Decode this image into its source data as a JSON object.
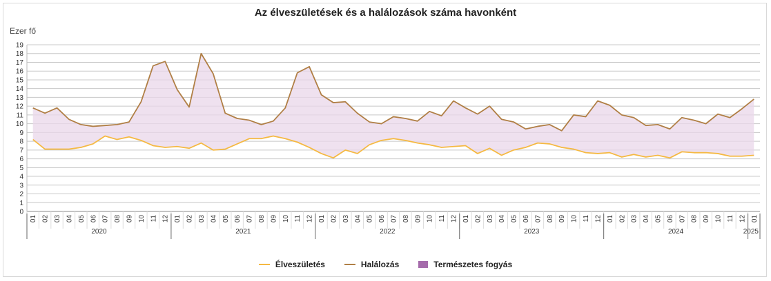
{
  "colors": {
    "births": "#f5b942",
    "deaths": "#b07f45",
    "area": "#ead7ea",
    "area_legend": "#a56bab"
  },
  "chart_data": {
    "type": "line",
    "title": "Az élveszületések és a halálozások száma havonként",
    "ylabel": "Ezer fő",
    "ylim": [
      0,
      19
    ],
    "y_ticks": [
      0,
      1,
      2,
      3,
      4,
      5,
      6,
      7,
      8,
      9,
      10,
      11,
      12,
      13,
      14,
      15,
      16,
      17,
      18,
      19
    ],
    "grid": true,
    "legend_position": "bottom",
    "years": [
      "2020",
      "2021",
      "2022",
      "2023",
      "2024",
      "2025"
    ],
    "x": [
      "01",
      "02",
      "03",
      "04",
      "05",
      "06",
      "07",
      "08",
      "09",
      "10",
      "11",
      "12",
      "01",
      "02",
      "03",
      "04",
      "05",
      "06",
      "07",
      "08",
      "09",
      "10",
      "11",
      "12",
      "01",
      "02",
      "03",
      "04",
      "05",
      "06",
      "07",
      "08",
      "09",
      "10",
      "11",
      "12",
      "01",
      "02",
      "03",
      "04",
      "05",
      "06",
      "07",
      "08",
      "09",
      "10",
      "11",
      "12",
      "01",
      "02",
      "03",
      "04",
      "05",
      "06",
      "07",
      "08",
      "09",
      "10",
      "11",
      "12",
      "01"
    ],
    "series": [
      {
        "name": "Élveszületés",
        "values": [
          8.2,
          7.1,
          7.1,
          7.1,
          7.3,
          7.7,
          8.6,
          8.2,
          8.5,
          8.1,
          7.5,
          7.3,
          7.4,
          7.2,
          7.8,
          7.0,
          7.1,
          7.7,
          8.3,
          8.3,
          8.6,
          8.3,
          7.9,
          7.3,
          6.6,
          6.1,
          7.0,
          6.6,
          7.6,
          8.1,
          8.3,
          8.1,
          7.8,
          7.6,
          7.3,
          7.4,
          7.5,
          6.6,
          7.2,
          6.4,
          7.0,
          7.3,
          7.8,
          7.7,
          7.3,
          7.1,
          6.7,
          6.6,
          6.7,
          6.2,
          6.5,
          6.2,
          6.4,
          6.1,
          6.8,
          6.7,
          6.7,
          6.6,
          6.3,
          6.3,
          6.4
        ]
      },
      {
        "name": "Halálozás",
        "values": [
          11.8,
          11.2,
          11.8,
          10.5,
          9.9,
          9.7,
          9.8,
          9.9,
          10.2,
          12.5,
          16.6,
          17.1,
          13.9,
          11.9,
          18.0,
          15.7,
          11.2,
          10.6,
          10.4,
          9.9,
          10.3,
          11.8,
          15.8,
          16.5,
          13.3,
          12.4,
          12.5,
          11.2,
          10.2,
          10.0,
          10.8,
          10.6,
          10.3,
          11.4,
          10.9,
          12.6,
          11.8,
          11.1,
          12.0,
          10.5,
          10.2,
          9.4,
          9.7,
          9.9,
          9.2,
          11.0,
          10.8,
          12.6,
          12.1,
          11.0,
          10.7,
          9.8,
          9.9,
          9.4,
          10.7,
          10.4,
          10.0,
          11.1,
          10.7,
          11.7,
          12.8
        ]
      }
    ],
    "area_label": "Természetes fogyás"
  }
}
